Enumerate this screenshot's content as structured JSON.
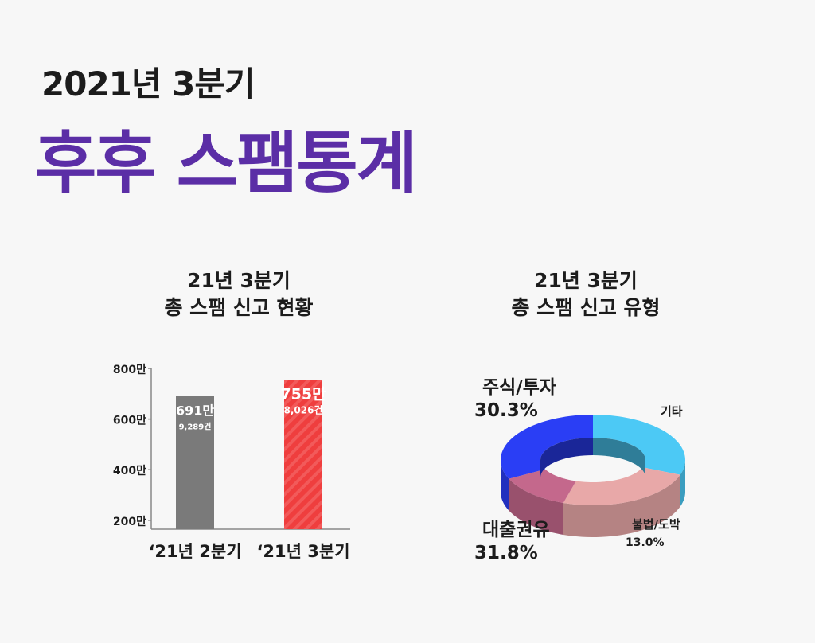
{
  "header": {
    "subtitle": "2021년 3분기",
    "title": "후후 스팸통계"
  },
  "chart_data": [
    {
      "type": "bar",
      "title_lines": [
        "21년 3분기",
        "총 스팸 신고 현황"
      ],
      "categories": [
        "‘21년 2분기",
        "‘21년 3분기"
      ],
      "values": [
        691,
        755
      ],
      "value_labels": [
        "691만",
        "755만"
      ],
      "sub_labels": [
        "9,289건",
        "8,026건"
      ],
      "yticks": [
        200,
        400,
        600,
        800
      ],
      "ytick_labels": [
        "200만",
        "400만",
        "600만",
        "800만"
      ],
      "ylim": [
        165,
        800
      ],
      "colors": [
        "#7a7a7a",
        "#ef3e3e"
      ]
    },
    {
      "type": "pie",
      "title_lines": [
        "21년 3분기",
        "총 스팸 신고 유형"
      ],
      "slices": [
        {
          "label": "주식/투자",
          "value": 30.3,
          "value_label": "30.3%",
          "color": "#4cc9f5"
        },
        {
          "label": "기타",
          "value": 24.9,
          "value_label": "",
          "color": "#e8a8a8"
        },
        {
          "label": "불법/도박",
          "value": 13.0,
          "value_label": "13.0%",
          "color": "#c4688c"
        },
        {
          "label": "대출권유",
          "value": 31.8,
          "value_label": "31.8%",
          "color": "#2a3ef5"
        }
      ]
    }
  ]
}
